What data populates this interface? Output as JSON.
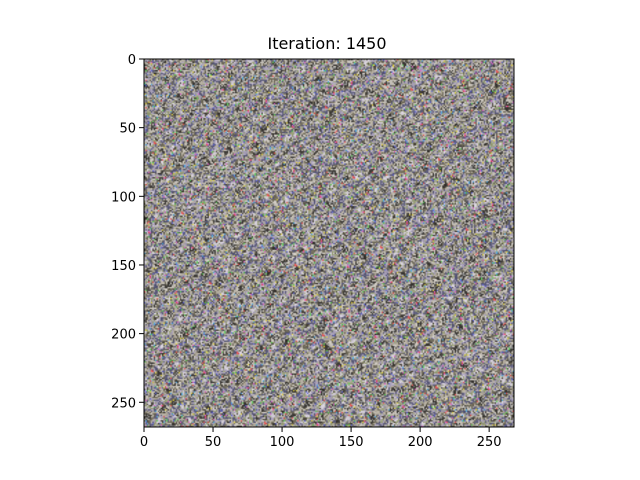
{
  "chart_data": {
    "type": "heatmap",
    "title": "Iteration: 1450",
    "xlabel": "",
    "ylabel": "",
    "image_size": [
      268,
      268
    ],
    "xlim": [
      0,
      268
    ],
    "ylim": [
      268,
      0
    ],
    "x_ticks": [
      0,
      50,
      100,
      150,
      200,
      250
    ],
    "y_ticks": [
      0,
      50,
      100,
      150,
      200,
      250
    ],
    "x_tick_labels": [
      "0",
      "50",
      "100",
      "150",
      "200",
      "250"
    ],
    "y_tick_labels": [
      "0",
      "50",
      "100",
      "150",
      "200",
      "250"
    ],
    "grid": false,
    "legend": false,
    "palette": [
      "#8a8a8a",
      "#3d3a36",
      "#c9c4bc",
      "#6f6a5a",
      "#b4ad9f",
      "#5a5a78",
      "#a8a0b8",
      "#9aa07a",
      "#d2ccd6",
      "#4d4740"
    ],
    "accents": [
      "#4aa0d8",
      "#d85ac0",
      "#58c858",
      "#e0d040",
      "#5a60d0",
      "#e05050"
    ]
  }
}
